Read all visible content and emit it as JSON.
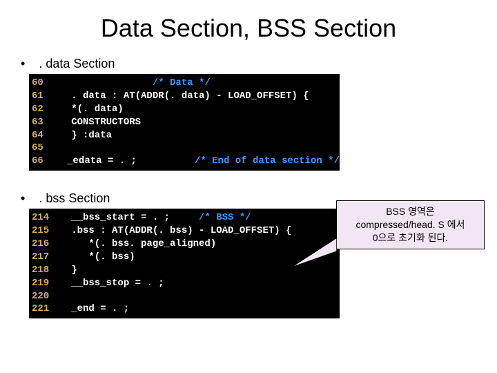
{
  "title": "Data Section, BSS Section",
  "bullets": {
    "data": ". data Section",
    "bss": ". bss Section"
  },
  "code_data": {
    "lines": [
      {
        "ln": "60",
        "parts": [
          {
            "t": "                 ",
            "c": "code"
          },
          {
            "t": "/* Data */",
            "c": "comment"
          }
        ]
      },
      {
        "ln": "61",
        "parts": [
          {
            "t": "   . data : AT(ADDR(. data) - LOAD_OFFSET) {",
            "c": "code"
          }
        ]
      },
      {
        "ln": "62",
        "parts": [
          {
            "t": "   *(. data)",
            "c": "code"
          }
        ]
      },
      {
        "ln": "63",
        "parts": [
          {
            "t": "   CONSTRUCTORS",
            "c": "code"
          }
        ]
      },
      {
        "ln": "64",
        "parts": [
          {
            "t": "   } :data",
            "c": "code"
          }
        ]
      },
      {
        "ln": "65",
        "parts": [
          {
            "t": "",
            "c": "code"
          }
        ]
      },
      {
        "ln": "66",
        "parts": [
          {
            "t": "   _edata = . ;          ",
            "c": "code"
          },
          {
            "t": "/* End of data section */",
            "c": "comment"
          }
        ]
      }
    ]
  },
  "code_bss": {
    "lines": [
      {
        "ln": "214",
        "parts": [
          {
            "t": "   __bss_start = . ;     ",
            "c": "code"
          },
          {
            "t": "/* BSS */",
            "c": "comment"
          }
        ]
      },
      {
        "ln": "215",
        "parts": [
          {
            "t": "   .bss : AT(ADDR(. bss) - LOAD_OFFSET) {",
            "c": "code"
          }
        ]
      },
      {
        "ln": "216",
        "parts": [
          {
            "t": "      *(. bss. page_aligned)",
            "c": "code"
          }
        ]
      },
      {
        "ln": "217",
        "parts": [
          {
            "t": "      *(. bss)",
            "c": "code"
          }
        ]
      },
      {
        "ln": "218",
        "parts": [
          {
            "t": "   }",
            "c": "code"
          }
        ]
      },
      {
        "ln": "219",
        "parts": [
          {
            "t": "   __bss_stop = . ;",
            "c": "code"
          }
        ]
      },
      {
        "ln": "220",
        "parts": [
          {
            "t": "",
            "c": "code"
          }
        ]
      },
      {
        "ln": "221",
        "parts": [
          {
            "t": "   _end = . ;",
            "c": "code"
          }
        ]
      }
    ]
  },
  "callout": {
    "line1": "BSS 영역은",
    "line2": "compressed/head. S 에서",
    "line3": "0으로 초기화 된다."
  },
  "colors": {
    "code_bg": "#000000",
    "code_text": "#ffffff",
    "line_number": "#d4b05a",
    "comment": "#3399ff",
    "callout_bg": "#f2e6f2",
    "callout_border": "#000000"
  }
}
